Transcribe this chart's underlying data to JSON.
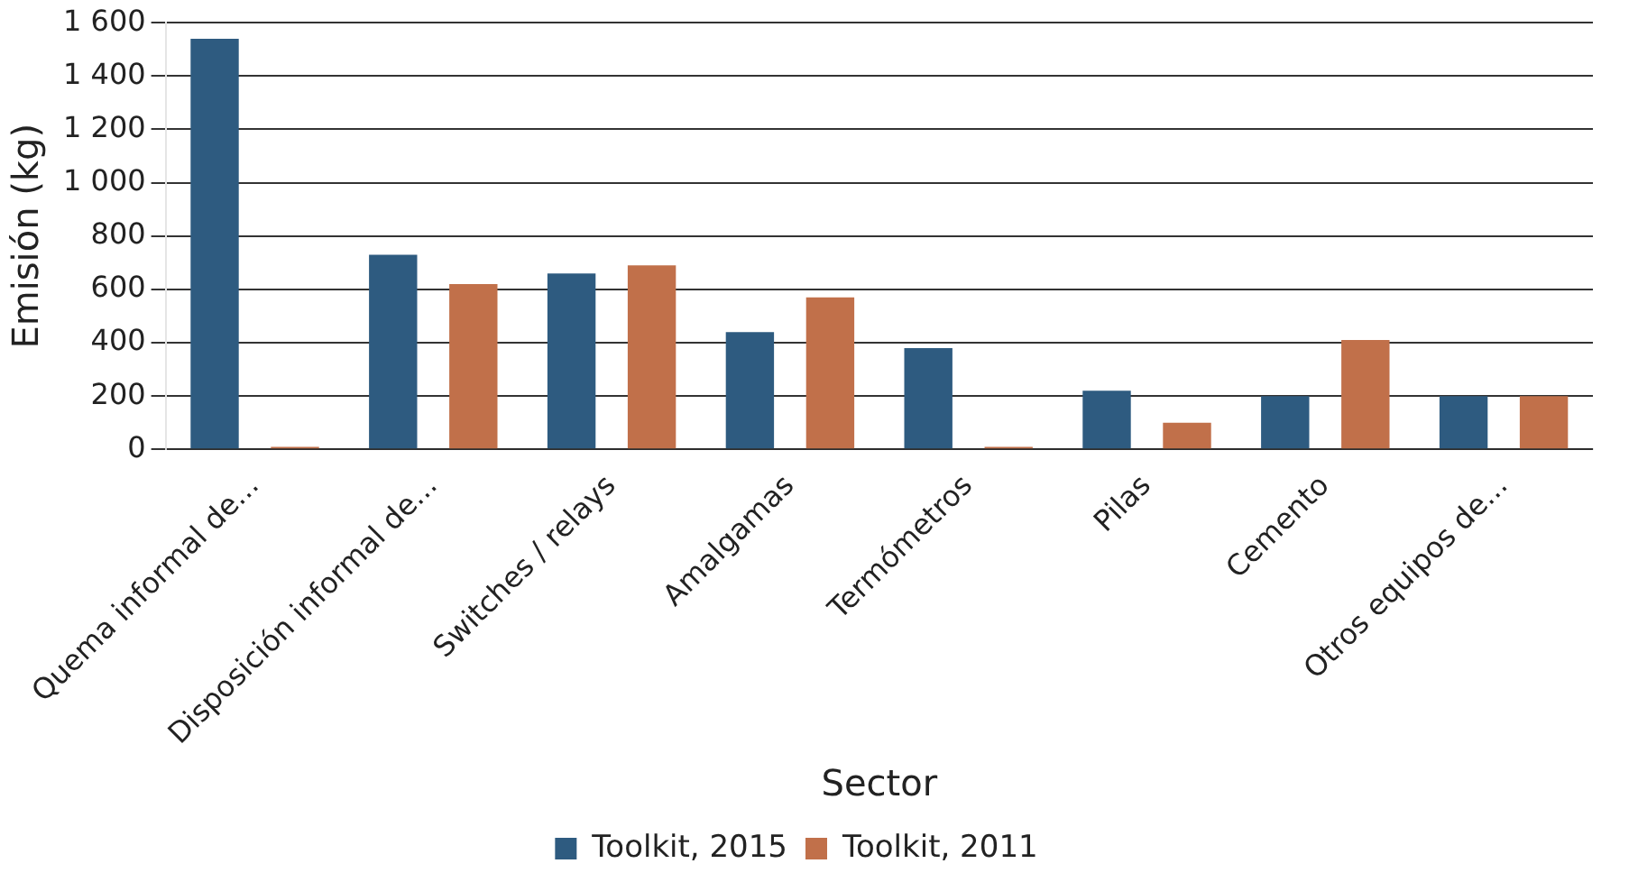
{
  "chart_data": {
    "type": "bar",
    "xlabel": "Sector",
    "ylabel": "Emisión (kg)",
    "categories": [
      "Quema informal de...",
      "Disposición informal de...",
      "Switches / relays",
      "Amalgamas",
      "Termómetros",
      "Pilas",
      "Cemento",
      "Otros equipos de..."
    ],
    "series": [
      {
        "name": "Toolkit, 2015",
        "color": "#2e5b80",
        "values": [
          1540,
          730,
          660,
          440,
          380,
          220,
          200,
          200
        ]
      },
      {
        "name": "Toolkit, 2011",
        "color": "#c1704a",
        "values": [
          10,
          620,
          690,
          570,
          10,
          100,
          410,
          200
        ]
      }
    ],
    "ylim": [
      0,
      1600
    ],
    "yticks": [
      0,
      200,
      400,
      600,
      800,
      {
        "value": 1000,
        "label": "1 000"
      },
      {
        "value": 1200,
        "label": "1 200"
      },
      {
        "value": 1400,
        "label": "1 400"
      },
      {
        "value": 1600,
        "label": "1 600"
      }
    ],
    "grid": "y",
    "legend": "bottom"
  }
}
